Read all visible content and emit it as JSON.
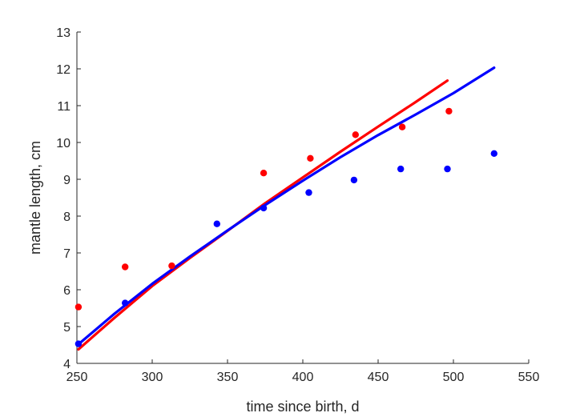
{
  "chart_data": {
    "type": "scatter",
    "title": "",
    "xlabel": "time since birth, d",
    "ylabel": "mantle length, cm",
    "xlim": [
      250,
      550
    ],
    "ylim": [
      4,
      13
    ],
    "xticks": [
      250,
      300,
      350,
      400,
      450,
      500,
      550
    ],
    "yticks": [
      4,
      5,
      6,
      7,
      8,
      9,
      10,
      11,
      12,
      13
    ],
    "grid": false,
    "legend": null,
    "series": [
      {
        "name": "red data",
        "kind": "points",
        "color": "#ff0000",
        "x": [
          251,
          282,
          313,
          374,
          405,
          435,
          466,
          497
        ],
        "y": [
          5.53,
          6.62,
          6.65,
          9.17,
          9.57,
          10.21,
          10.42,
          10.85
        ]
      },
      {
        "name": "blue data",
        "kind": "points",
        "color": "#0000ff",
        "x": [
          251,
          282,
          343,
          374,
          404,
          434,
          465,
          496,
          527
        ],
        "y": [
          4.53,
          5.64,
          7.79,
          8.22,
          8.64,
          8.98,
          9.28,
          9.28,
          9.7
        ]
      },
      {
        "name": "red fit",
        "kind": "line",
        "color": "#ff0000",
        "x": [
          251,
          275,
          300,
          325,
          350,
          375,
          400,
          425,
          450,
          475,
          496
        ],
        "y": [
          4.38,
          5.24,
          6.1,
          6.86,
          7.6,
          8.35,
          9.05,
          9.75,
          10.43,
          11.1,
          11.68
        ]
      },
      {
        "name": "blue fit",
        "kind": "line",
        "color": "#0000ff",
        "x": [
          251,
          275,
          300,
          325,
          350,
          375,
          400,
          425,
          450,
          475,
          500,
          527
        ],
        "y": [
          4.52,
          5.35,
          6.16,
          6.9,
          7.61,
          8.3,
          8.96,
          9.6,
          10.2,
          10.76,
          11.34,
          12.03
        ]
      }
    ]
  }
}
